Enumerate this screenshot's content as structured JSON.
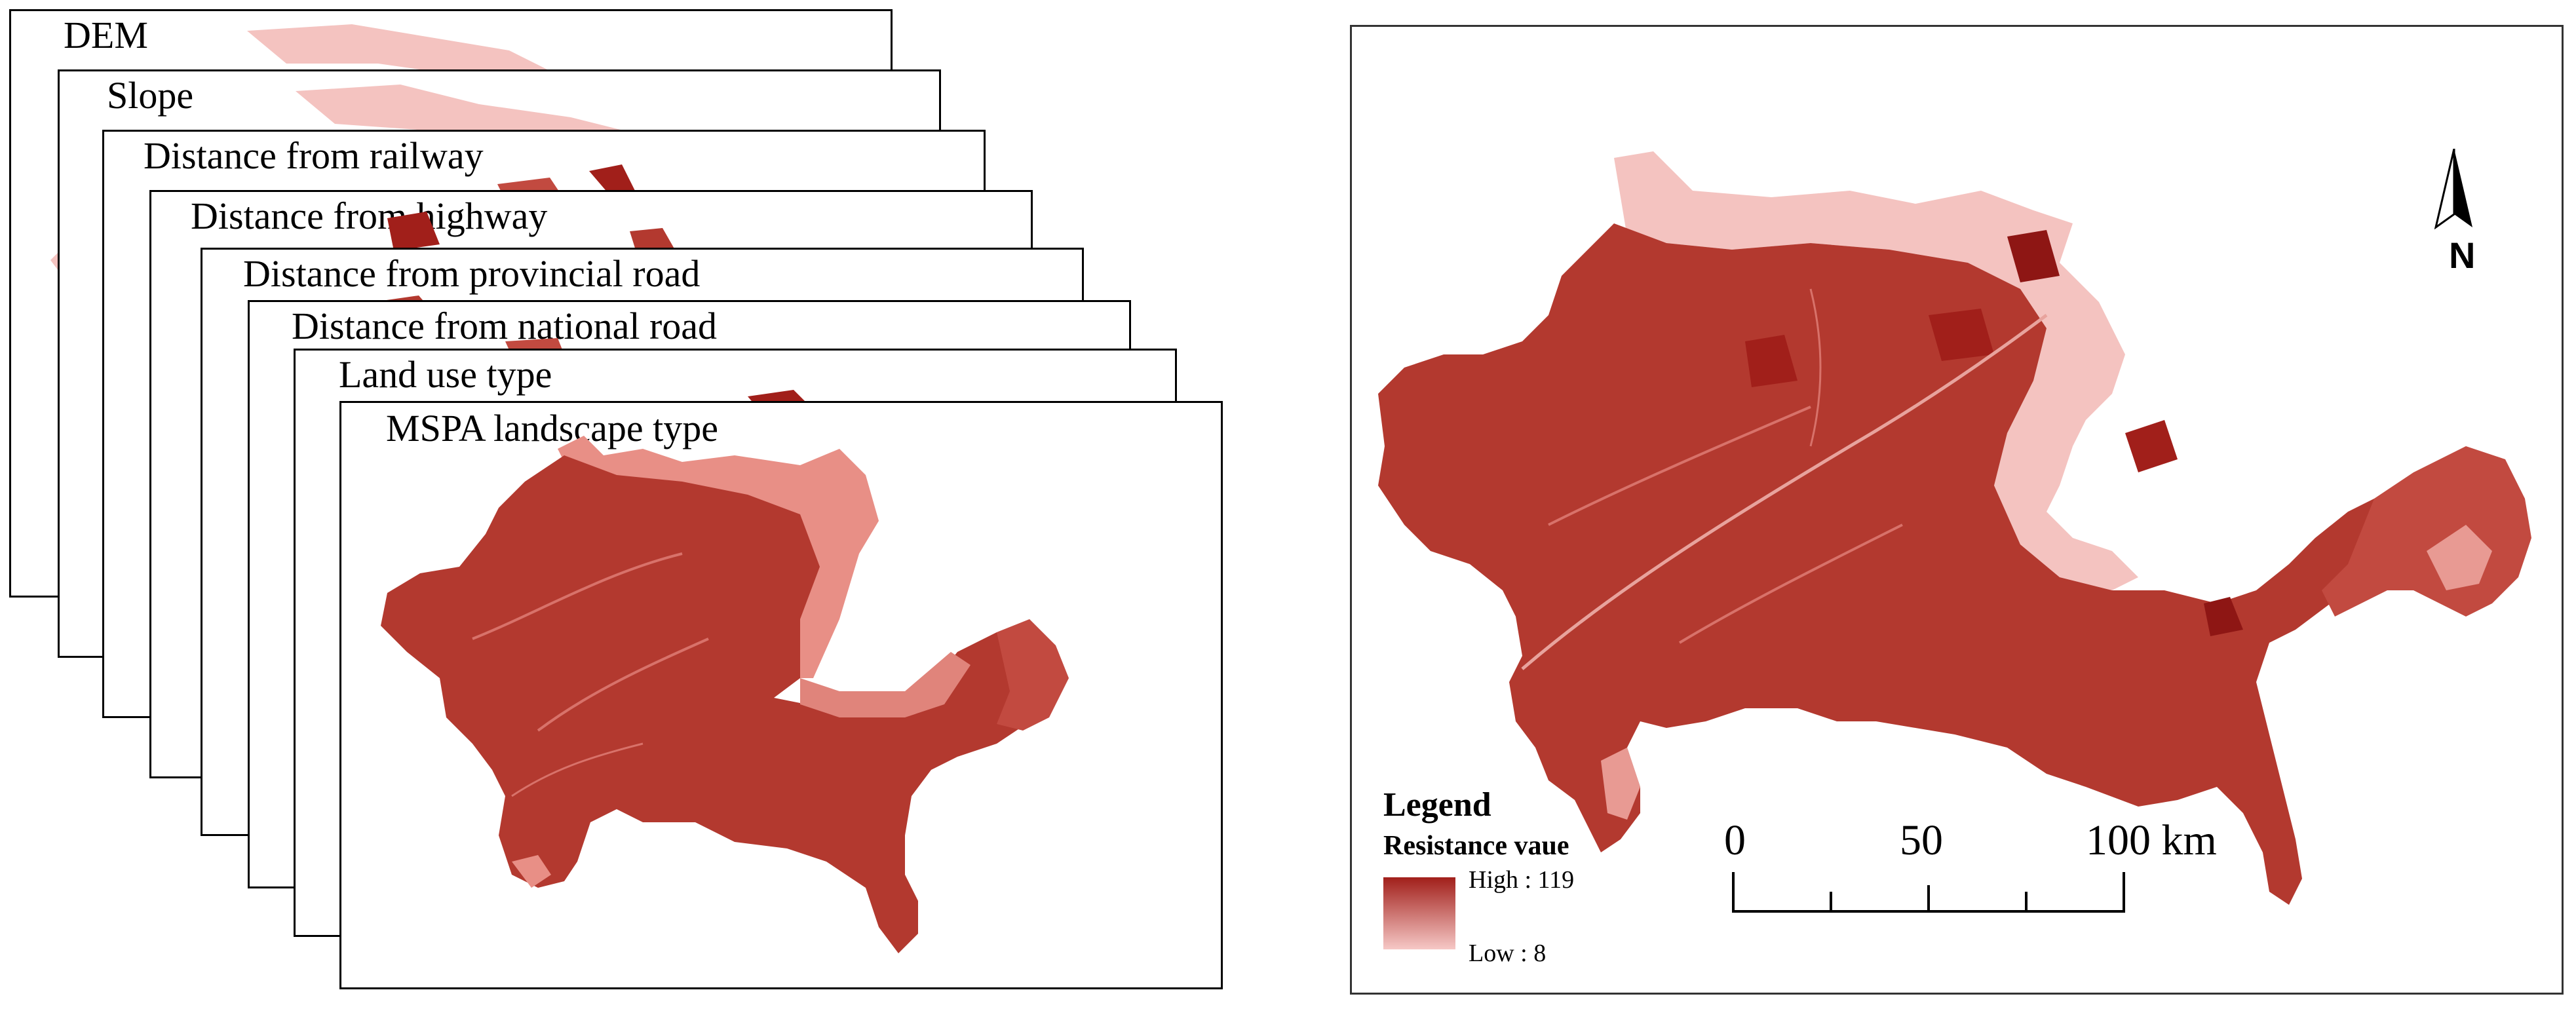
{
  "layer_stack": [
    {
      "title": "DEM"
    },
    {
      "title": "Slope"
    },
    {
      "title": "Distance from railway"
    },
    {
      "title": "Distance from highway"
    },
    {
      "title": "Distance from provincial road"
    },
    {
      "title": "Distance from national road"
    },
    {
      "title": "Land use type"
    },
    {
      "title": "MSPA landscape type"
    }
  ],
  "result_map": {
    "legend": {
      "title": "Legend",
      "subtitle": "Resistance vaue",
      "high_label": "High : 119",
      "low_label": "Low : 8",
      "high_color": "#a11f1a",
      "low_color": "#f6c8c6"
    },
    "scale_bar": {
      "labels": [
        "0",
        "50",
        "100 km"
      ]
    },
    "north_arrow": {
      "label": "N"
    }
  },
  "colors": {
    "dark_red": "#b3392f",
    "mid_red": "#c24a40",
    "light_pink": "#f4c3c0",
    "deep_red": "#8e1614"
  }
}
